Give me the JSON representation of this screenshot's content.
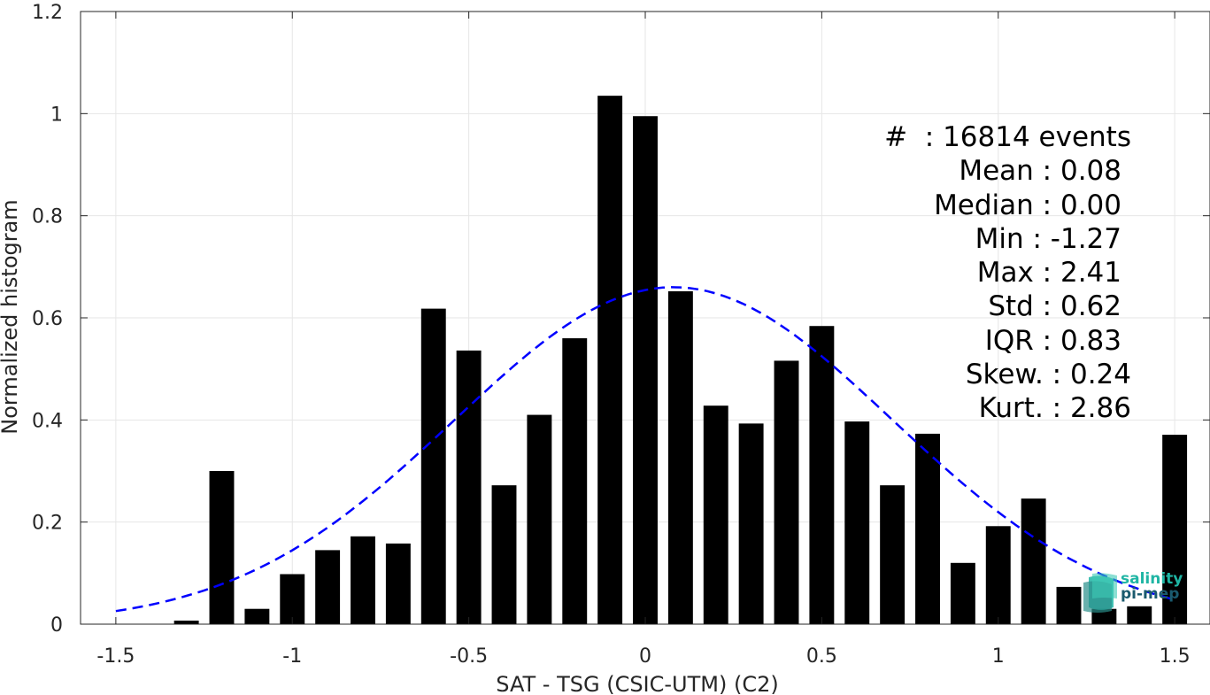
{
  "chart_data": {
    "type": "bar",
    "xlabel": "SAT - TSG (CSIC-UTM) (C2)",
    "ylabel": "Normalized histogram",
    "xlim": [
      -1.6,
      1.6
    ],
    "ylim": [
      0,
      1.2
    ],
    "xticks": [
      "-1.5",
      "-1",
      "-0.5",
      "0",
      "0.5",
      "1",
      "1.5"
    ],
    "yticks": [
      "0",
      "0.2",
      "0.4",
      "0.6",
      "0.8",
      "1",
      "1.2"
    ],
    "grid": true,
    "bin_width": 0.1,
    "bars": {
      "x": [
        -1.3,
        -1.2,
        -1.1,
        -1.0,
        -0.9,
        -0.8,
        -0.7,
        -0.6,
        -0.5,
        -0.4,
        -0.3,
        -0.2,
        -0.1,
        0.0,
        0.1,
        0.2,
        0.3,
        0.4,
        0.5,
        0.6,
        0.7,
        0.8,
        0.9,
        1.0,
        1.1,
        1.2,
        1.3,
        1.4,
        1.5
      ],
      "values": [
        0.007,
        0.3,
        0.03,
        0.098,
        0.145,
        0.172,
        0.158,
        0.618,
        0.536,
        0.272,
        0.41,
        0.56,
        1.035,
        0.995,
        0.652,
        0.428,
        0.393,
        0.516,
        0.584,
        0.397,
        0.272,
        0.373,
        0.12,
        0.192,
        0.246,
        0.073,
        0.03,
        0.035,
        0.371
      ],
      "color": "#000000"
    },
    "fit_curve": {
      "type": "normal",
      "mean": 0.08,
      "std": 0.62,
      "peak": 0.66,
      "x_range": [
        -1.5,
        1.5
      ],
      "color": "#0000ff",
      "style": "dashed"
    }
  },
  "stats_box": {
    "lines": [
      "#  : 16814 events",
      "Mean : 0.08",
      "Median : 0.00",
      "Min : -1.27",
      "Max : 2.41",
      "Std : 0.62",
      "IQR : 0.83",
      "Skew. : 0.24",
      "Kurt. : 2.86"
    ]
  },
  "logo": {
    "line1": "salinity",
    "line2": "pi-mep",
    "color1": "#1fb5a4",
    "color2": "#1a5a6e"
  }
}
